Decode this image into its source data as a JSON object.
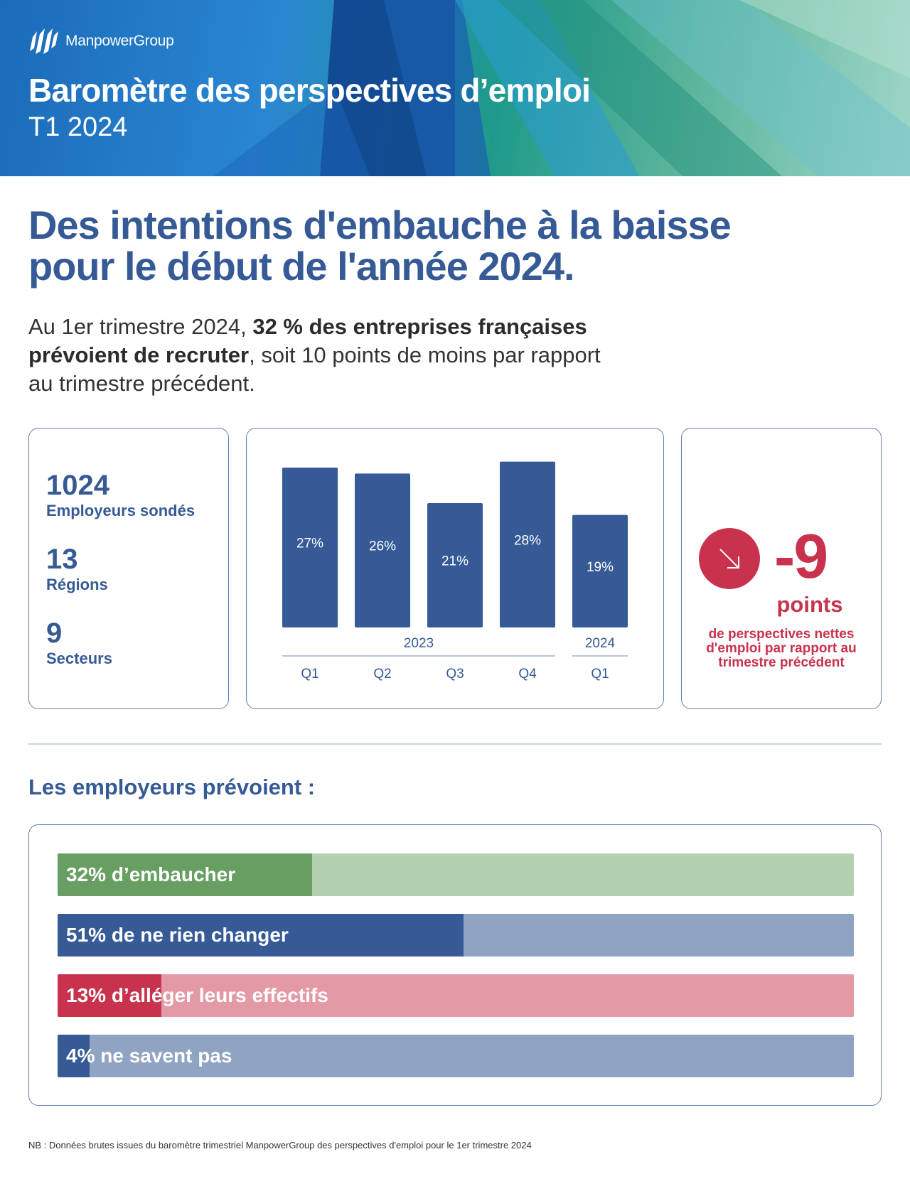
{
  "header": {
    "brand": "ManpowerGroup",
    "title": "Baromètre des perspectives d’emploi",
    "subtitle": "T1 2024"
  },
  "headline": {
    "line1": "Des intentions d'embauche à la baisse",
    "line2": "pour le début de l'année 2024."
  },
  "intro": {
    "part1": "Au 1er trimestre 2024, ",
    "bold1": "32 % des entreprises françaises",
    "bold2": "prévoient de recruter",
    "part2": ", soit 10 points de moins par rapport",
    "part3": "au trimestre précédent."
  },
  "stats": [
    {
      "value": "1024",
      "label": "Employeurs sondés"
    },
    {
      "value": "13",
      "label": "Régions"
    },
    {
      "value": "9",
      "label": "Secteurs"
    }
  ],
  "delta": {
    "value": "-9",
    "unit": "points",
    "desc_lines": [
      "de perspectives nettes",
      "d'emploi par rapport au",
      "trimestre précédent"
    ],
    "icon": "arrow-down-right-icon",
    "color": "#c8324d"
  },
  "section_title": "Les employeurs prévoient :",
  "chart_data": [
    {
      "type": "bar",
      "categories": [
        "Q1",
        "Q2",
        "Q3",
        "Q4",
        "Q1"
      ],
      "groups": [
        {
          "label": "2023",
          "categories": [
            "Q1",
            "Q2",
            "Q3",
            "Q4"
          ]
        },
        {
          "label": "2024",
          "categories": [
            "Q1"
          ]
        }
      ],
      "values": [
        27,
        26,
        21,
        28,
        19
      ],
      "data_labels": [
        "27%",
        "26%",
        "21%",
        "28%",
        "19%"
      ],
      "ylim": [
        0,
        30
      ],
      "grid": false,
      "bar_color": "#355a96"
    },
    {
      "type": "bar",
      "orientation": "horizontal",
      "values": [
        32,
        51,
        13,
        4
      ],
      "labels": [
        "32% d’embaucher",
        "51% de ne rien changer",
        "13% d’alléger leurs effectifs",
        "4% ne savent pas"
      ],
      "colors": [
        {
          "fill": "#679f63",
          "track": "#b3d1b1"
        },
        {
          "fill": "#355a96",
          "track": "#8fa3c2"
        },
        {
          "fill": "#c8324d",
          "track": "#e499a7"
        },
        {
          "fill": "#355a96",
          "track": "#8fa3c2"
        }
      ],
      "xlim": [
        0,
        100
      ]
    }
  ],
  "note": "NB : Données brutes issues du baromètre trimestriel ManpowerGroup des perspectives d'emploi pour le 1er trimestre 2024"
}
